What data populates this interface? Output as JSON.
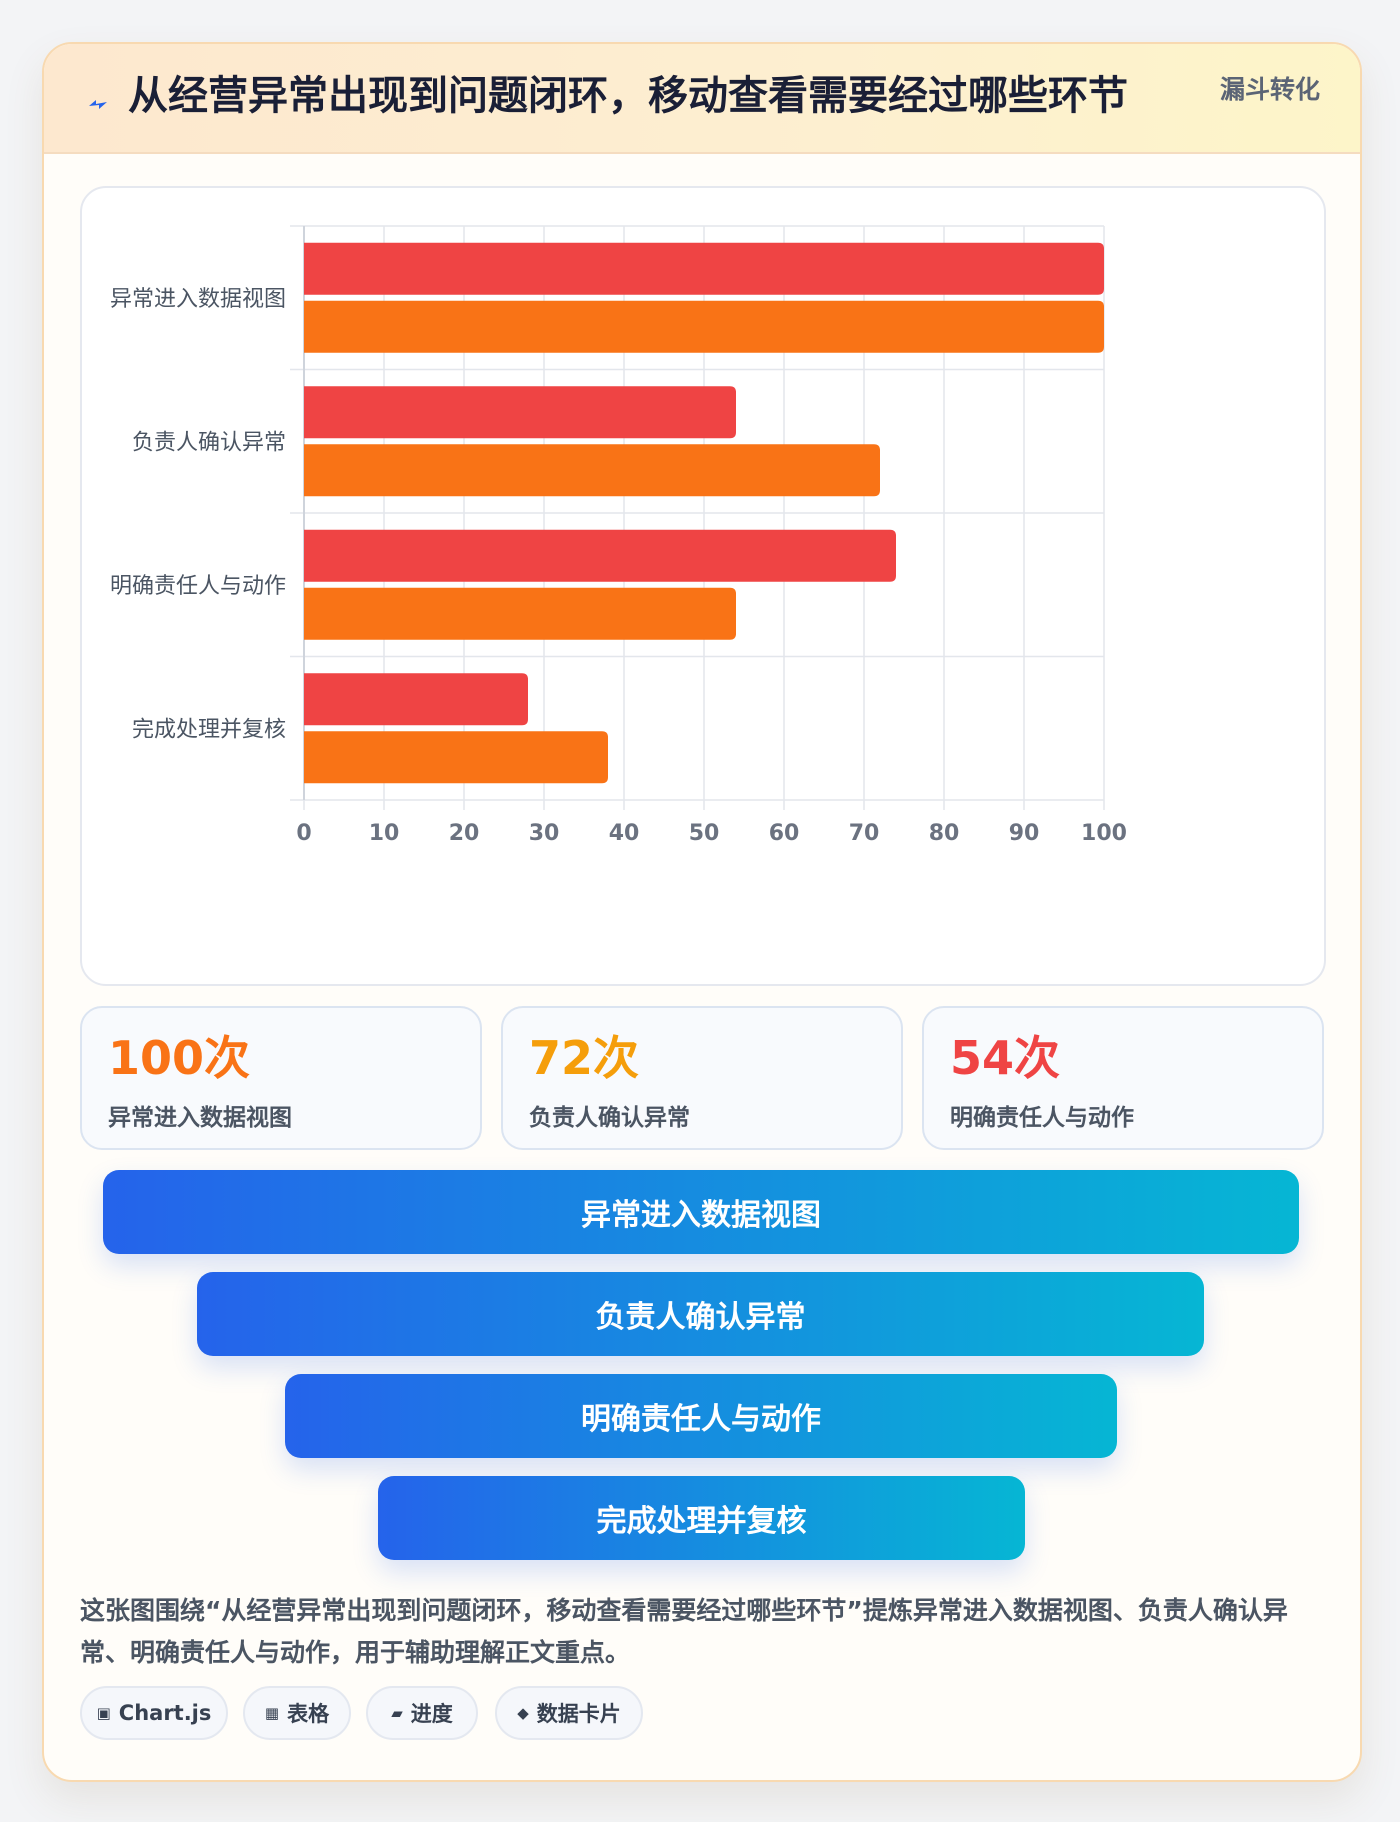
{
  "header": {
    "title": "从经营异常出现到问题闭环，移动查看需要经过哪些环节",
    "badge": "漏斗转化",
    "icon": "lightning-icon"
  },
  "chart_data": {
    "type": "bar",
    "orientation": "horizontal",
    "categories": [
      "异常进入数据视图",
      "负责人确认异常",
      "明确责任人与动作",
      "完成处理并复核"
    ],
    "series": [
      {
        "color": "#ef4444",
        "values": [
          100,
          54,
          74,
          28
        ]
      },
      {
        "color": "#f97316",
        "values": [
          100,
          72,
          54,
          38
        ]
      }
    ],
    "xlim": [
      0,
      100
    ],
    "xticks": [
      0,
      10,
      20,
      30,
      40,
      50,
      60,
      70,
      80,
      90,
      100
    ],
    "grid": true,
    "legend": "none"
  },
  "stats": [
    {
      "value": "100次",
      "label": "异常进入数据视图",
      "color": "#f97316"
    },
    {
      "value": "72次",
      "label": "负责人确认异常",
      "color": "#f59e0b"
    },
    {
      "value": "54次",
      "label": "明确责任人与动作",
      "color": "#ef4444"
    }
  ],
  "funnel": [
    "异常进入数据视图",
    "负责人确认异常",
    "明确责任人与动作",
    "完成处理并复核"
  ],
  "description": "这张图围绕“从经营异常出现到问题闭环，移动查看需要经过哪些环节”提炼异常进入数据视图、负责人确认异常、明确责任人与动作，用于辅助理解正文重点。",
  "chips": [
    {
      "icon": "chart-icon",
      "glyph": "▣",
      "label": "Chart.js"
    },
    {
      "icon": "table-icon",
      "glyph": "▦",
      "label": "表格"
    },
    {
      "icon": "progress-icon",
      "glyph": "▰",
      "label": "进度"
    },
    {
      "icon": "diamond-icon",
      "glyph": "◆",
      "label": "数据卡片"
    }
  ]
}
